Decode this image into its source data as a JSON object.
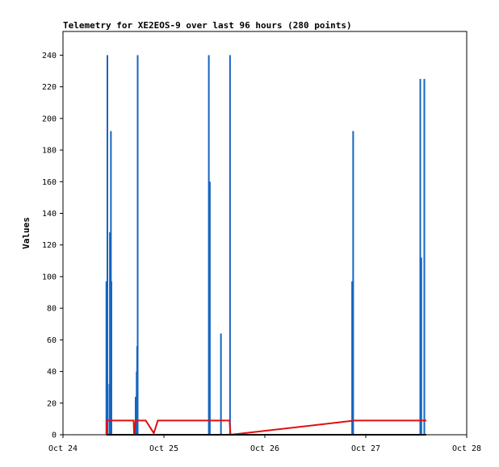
{
  "chart_data": {
    "type": "line",
    "title": "Telemetry for XE2EOS-9 over last 96 hours (280 points)",
    "xlabel": "",
    "ylabel": "Values",
    "ylim": [
      0,
      255
    ],
    "xlim": [
      "Oct 24",
      "Oct 28"
    ],
    "x_ticks": [
      "Oct 24",
      "Oct 25",
      "Oct 26",
      "Oct 27",
      "Oct 28"
    ],
    "y_ticks": [
      0,
      20,
      40,
      60,
      80,
      100,
      120,
      140,
      160,
      180,
      200,
      220,
      240
    ],
    "grid": false,
    "legend": "none",
    "series": [
      {
        "color": "#1565c0",
        "style": "spikes",
        "x_day_offset": [
          0.43,
          0.44,
          0.46,
          0.465,
          0.475,
          0.48,
          0.72,
          0.73,
          0.735,
          0.74,
          1.445,
          1.455,
          1.565,
          1.655,
          2.865,
          2.875,
          3.54,
          3.55,
          3.58
        ],
        "y": [
          97,
          240,
          32,
          128,
          192,
          97,
          24,
          40,
          56,
          240,
          240,
          160,
          64,
          240,
          97,
          192,
          225,
          112,
          225
        ]
      },
      {
        "color": "#e01010",
        "style": "line",
        "x_day_offset": [
          0.43,
          0.435,
          0.7,
          0.705,
          0.72,
          0.8,
          0.82,
          0.9,
          0.94,
          1.64,
          1.65,
          1.66,
          2.89,
          3.6
        ],
        "y": [
          0,
          9,
          9,
          0,
          9,
          9,
          9,
          1,
          9,
          9,
          9,
          0,
          9,
          9
        ]
      },
      {
        "color": "#000000",
        "style": "line",
        "x_day_offset": [
          0.43,
          3.6
        ],
        "y": [
          0,
          0
        ]
      }
    ]
  }
}
